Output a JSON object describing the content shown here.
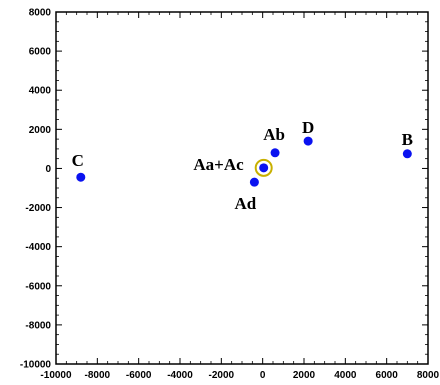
{
  "chart_data": {
    "type": "scatter",
    "title": "",
    "xlabel": "",
    "ylabel": "",
    "xlim": [
      -10000,
      8000
    ],
    "ylim": [
      -10000,
      8000
    ],
    "x_ticks": [
      -10000,
      -8000,
      -6000,
      -4000,
      -2000,
      0,
      2000,
      4000,
      6000,
      8000
    ],
    "y_ticks": [
      -10000,
      -8000,
      -6000,
      -4000,
      -2000,
      0,
      2000,
      4000,
      6000,
      8000
    ],
    "grid": false,
    "points": [
      {
        "label": "C",
        "x": -8800,
        "y": -450
      },
      {
        "label": "Ad",
        "x": -400,
        "y": -700
      },
      {
        "label": "Aa+Ac",
        "x": 50,
        "y": 30
      },
      {
        "label": "Ab",
        "x": 600,
        "y": 800
      },
      {
        "label": "D",
        "x": 2200,
        "y": 1400
      },
      {
        "label": "B",
        "x": 7000,
        "y": 750
      }
    ],
    "highlight": {
      "label": "Aa+Ac",
      "x": 50,
      "y": 30
    },
    "colors": {
      "point": "#0a12f0",
      "highlight_ring": "#c8b000",
      "axis": "#000000"
    }
  }
}
